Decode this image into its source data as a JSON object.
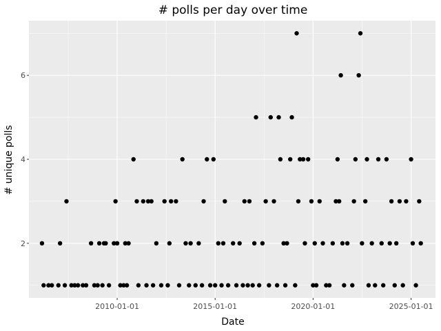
{
  "chart_data": {
    "type": "scatter",
    "title": "# polls per day over time",
    "xlabel": "Date",
    "ylabel": "# unique polls",
    "x_ticks": [
      "2010-01-01",
      "2015-01-01",
      "2020-01-01",
      "2025-01-01"
    ],
    "y_ticks": [
      2,
      4,
      6
    ],
    "xlim": [
      "2005-07-01",
      "2026-04-01"
    ],
    "ylim": [
      0.7,
      7.3
    ],
    "grid": true,
    "colors": {
      "panel": "#ebebeb",
      "grid": "#ffffff",
      "point": "#000000"
    },
    "points": [
      {
        "x": "2006-03-01",
        "y": 2
      },
      {
        "x": "2006-04-01",
        "y": 1
      },
      {
        "x": "2006-07-01",
        "y": 1
      },
      {
        "x": "2006-09-01",
        "y": 1
      },
      {
        "x": "2007-01-01",
        "y": 1
      },
      {
        "x": "2007-02-01",
        "y": 2
      },
      {
        "x": "2007-05-01",
        "y": 1
      },
      {
        "x": "2007-06-01",
        "y": 3
      },
      {
        "x": "2007-09-01",
        "y": 1
      },
      {
        "x": "2007-11-01",
        "y": 1
      },
      {
        "x": "2008-01-01",
        "y": 1
      },
      {
        "x": "2008-04-01",
        "y": 1
      },
      {
        "x": "2008-06-01",
        "y": 1
      },
      {
        "x": "2008-09-01",
        "y": 2
      },
      {
        "x": "2008-11-01",
        "y": 1
      },
      {
        "x": "2009-01-01",
        "y": 1
      },
      {
        "x": "2009-02-01",
        "y": 2
      },
      {
        "x": "2009-04-01",
        "y": 1
      },
      {
        "x": "2009-05-01",
        "y": 2
      },
      {
        "x": "2009-06-01",
        "y": 2
      },
      {
        "x": "2009-08-01",
        "y": 1
      },
      {
        "x": "2009-11-01",
        "y": 2
      },
      {
        "x": "2009-12-01",
        "y": 3
      },
      {
        "x": "2010-01-01",
        "y": 2
      },
      {
        "x": "2010-03-01",
        "y": 1
      },
      {
        "x": "2010-05-01",
        "y": 1
      },
      {
        "x": "2010-06-01",
        "y": 2
      },
      {
        "x": "2010-07-01",
        "y": 1
      },
      {
        "x": "2010-08-01",
        "y": 2
      },
      {
        "x": "2010-11-01",
        "y": 4
      },
      {
        "x": "2011-01-01",
        "y": 3
      },
      {
        "x": "2011-02-01",
        "y": 1
      },
      {
        "x": "2011-05-01",
        "y": 3
      },
      {
        "x": "2011-07-01",
        "y": 1
      },
      {
        "x": "2011-08-01",
        "y": 3
      },
      {
        "x": "2011-10-01",
        "y": 3
      },
      {
        "x": "2011-11-01",
        "y": 1
      },
      {
        "x": "2012-01-01",
        "y": 2
      },
      {
        "x": "2012-04-01",
        "y": 1
      },
      {
        "x": "2012-06-01",
        "y": 3
      },
      {
        "x": "2012-08-01",
        "y": 1
      },
      {
        "x": "2012-09-01",
        "y": 2
      },
      {
        "x": "2012-10-01",
        "y": 3
      },
      {
        "x": "2013-01-01",
        "y": 3
      },
      {
        "x": "2013-03-01",
        "y": 1
      },
      {
        "x": "2013-05-01",
        "y": 4
      },
      {
        "x": "2013-07-01",
        "y": 2
      },
      {
        "x": "2013-09-01",
        "y": 1
      },
      {
        "x": "2013-10-01",
        "y": 2
      },
      {
        "x": "2014-01-01",
        "y": 1
      },
      {
        "x": "2014-03-01",
        "y": 2
      },
      {
        "x": "2014-05-01",
        "y": 1
      },
      {
        "x": "2014-06-01",
        "y": 3
      },
      {
        "x": "2014-08-01",
        "y": 4
      },
      {
        "x": "2014-10-01",
        "y": 1
      },
      {
        "x": "2014-12-01",
        "y": 4
      },
      {
        "x": "2015-01-01",
        "y": 1
      },
      {
        "x": "2015-03-01",
        "y": 2
      },
      {
        "x": "2015-05-01",
        "y": 1
      },
      {
        "x": "2015-06-01",
        "y": 2
      },
      {
        "x": "2015-07-01",
        "y": 3
      },
      {
        "x": "2015-09-01",
        "y": 1
      },
      {
        "x": "2015-12-01",
        "y": 2
      },
      {
        "x": "2016-02-01",
        "y": 1
      },
      {
        "x": "2016-04-01",
        "y": 2
      },
      {
        "x": "2016-06-01",
        "y": 1
      },
      {
        "x": "2016-07-01",
        "y": 3
      },
      {
        "x": "2016-09-01",
        "y": 1
      },
      {
        "x": "2016-10-01",
        "y": 3
      },
      {
        "x": "2016-12-01",
        "y": 1
      },
      {
        "x": "2017-01-01",
        "y": 2
      },
      {
        "x": "2017-02-01",
        "y": 5
      },
      {
        "x": "2017-04-01",
        "y": 1
      },
      {
        "x": "2017-06-01",
        "y": 2
      },
      {
        "x": "2017-08-01",
        "y": 3
      },
      {
        "x": "2017-10-01",
        "y": 1
      },
      {
        "x": "2017-11-01",
        "y": 5
      },
      {
        "x": "2018-01-01",
        "y": 3
      },
      {
        "x": "2018-03-01",
        "y": 1
      },
      {
        "x": "2018-04-01",
        "y": 5
      },
      {
        "x": "2018-05-01",
        "y": 4
      },
      {
        "x": "2018-07-01",
        "y": 2
      },
      {
        "x": "2018-08-01",
        "y": 1
      },
      {
        "x": "2018-09-01",
        "y": 2
      },
      {
        "x": "2018-11-01",
        "y": 4
      },
      {
        "x": "2018-12-01",
        "y": 5
      },
      {
        "x": "2019-02-01",
        "y": 1
      },
      {
        "x": "2019-03-01",
        "y": 7
      },
      {
        "x": "2019-04-01",
        "y": 3
      },
      {
        "x": "2019-05-01",
        "y": 4
      },
      {
        "x": "2019-07-01",
        "y": 4
      },
      {
        "x": "2019-08-01",
        "y": 2
      },
      {
        "x": "2019-10-01",
        "y": 4
      },
      {
        "x": "2019-12-01",
        "y": 3
      },
      {
        "x": "2020-01-01",
        "y": 1
      },
      {
        "x": "2020-02-01",
        "y": 2
      },
      {
        "x": "2020-03-01",
        "y": 1
      },
      {
        "x": "2020-05-01",
        "y": 3
      },
      {
        "x": "2020-07-01",
        "y": 2
      },
      {
        "x": "2020-09-01",
        "y": 1
      },
      {
        "x": "2020-11-01",
        "y": 1
      },
      {
        "x": "2021-01-01",
        "y": 2
      },
      {
        "x": "2021-03-01",
        "y": 3
      },
      {
        "x": "2021-04-01",
        "y": 4
      },
      {
        "x": "2021-05-01",
        "y": 3
      },
      {
        "x": "2021-06-01",
        "y": 6
      },
      {
        "x": "2021-07-01",
        "y": 2
      },
      {
        "x": "2021-08-01",
        "y": 1
      },
      {
        "x": "2021-10-01",
        "y": 2
      },
      {
        "x": "2022-01-01",
        "y": 1
      },
      {
        "x": "2022-02-01",
        "y": 3
      },
      {
        "x": "2022-03-01",
        "y": 4
      },
      {
        "x": "2022-05-01",
        "y": 6
      },
      {
        "x": "2022-06-01",
        "y": 7
      },
      {
        "x": "2022-07-01",
        "y": 2
      },
      {
        "x": "2022-09-01",
        "y": 3
      },
      {
        "x": "2022-10-01",
        "y": 4
      },
      {
        "x": "2022-11-01",
        "y": 1
      },
      {
        "x": "2023-01-01",
        "y": 2
      },
      {
        "x": "2023-03-01",
        "y": 1
      },
      {
        "x": "2023-05-01",
        "y": 4
      },
      {
        "x": "2023-07-01",
        "y": 2
      },
      {
        "x": "2023-08-01",
        "y": 1
      },
      {
        "x": "2023-10-01",
        "y": 4
      },
      {
        "x": "2023-12-01",
        "y": 2
      },
      {
        "x": "2024-01-01",
        "y": 3
      },
      {
        "x": "2024-03-01",
        "y": 1
      },
      {
        "x": "2024-04-01",
        "y": 2
      },
      {
        "x": "2024-06-01",
        "y": 3
      },
      {
        "x": "2024-08-01",
        "y": 1
      },
      {
        "x": "2024-10-01",
        "y": 3
      },
      {
        "x": "2025-01-01",
        "y": 4
      },
      {
        "x": "2025-02-01",
        "y": 2
      },
      {
        "x": "2025-04-01",
        "y": 1
      },
      {
        "x": "2025-06-01",
        "y": 3
      },
      {
        "x": "2025-07-01",
        "y": 2
      }
    ]
  }
}
